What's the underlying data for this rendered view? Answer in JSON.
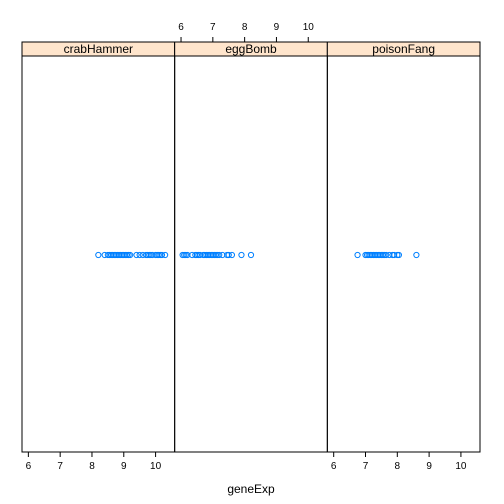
{
  "chart_data": {
    "type": "scatter",
    "xlabel": "geneExp",
    "xlim": [
      5.8,
      10.6
    ],
    "xticks": [
      6,
      7,
      8,
      9,
      10
    ],
    "panels": [
      {
        "name": "crabHammer",
        "values": [
          8.2,
          8.4,
          8.5,
          8.55,
          8.6,
          8.65,
          8.7,
          8.75,
          8.8,
          8.85,
          8.9,
          8.95,
          9.0,
          9.05,
          9.1,
          9.15,
          9.2,
          9.4,
          9.5,
          9.6,
          9.7,
          9.75,
          9.8,
          9.85,
          9.9,
          10.0,
          10.05,
          10.1,
          10.15,
          10.2,
          10.3
        ]
      },
      {
        "name": "eggBomb",
        "values": [
          6.05,
          6.1,
          6.15,
          6.2,
          6.35,
          6.45,
          6.5,
          6.55,
          6.6,
          6.7,
          6.75,
          6.8,
          6.85,
          6.9,
          6.95,
          7.0,
          7.05,
          7.1,
          7.15,
          7.2,
          7.3,
          7.45,
          7.5,
          7.6,
          7.9,
          8.2
        ]
      },
      {
        "name": "poisonFang",
        "values": [
          6.75,
          7.0,
          7.05,
          7.1,
          7.15,
          7.2,
          7.25,
          7.3,
          7.35,
          7.4,
          7.45,
          7.5,
          7.55,
          7.6,
          7.65,
          7.75,
          7.85,
          7.9,
          8.0,
          8.05,
          8.6
        ]
      }
    ],
    "strip_color": "#ffe5cc",
    "point_color": "#0080ff"
  }
}
